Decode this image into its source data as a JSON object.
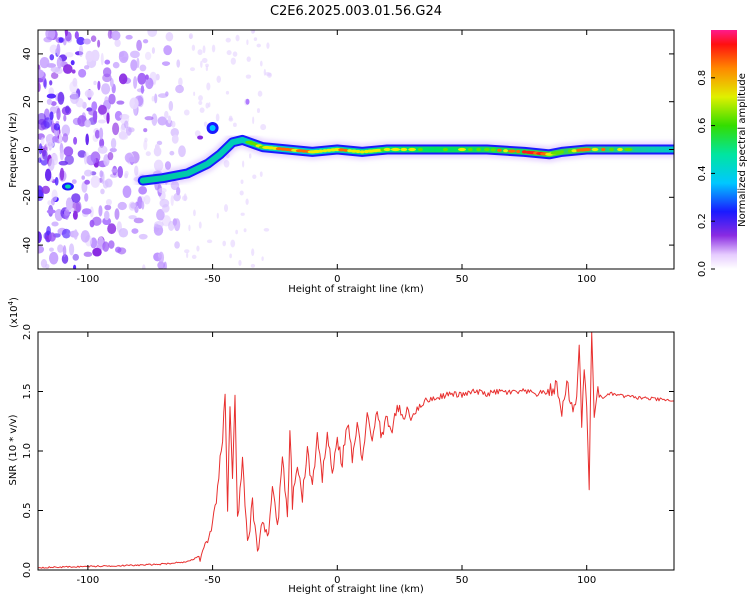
{
  "chart_data": [
    {
      "type": "heatmap",
      "title": "C2E6.2025.003.01.56.G24",
      "xlabel": "Height of straight line (km)",
      "ylabel": "Frequency (Hz)",
      "xlim": [
        -120,
        135
      ],
      "ylim": [
        -50,
        50
      ],
      "x_ticks": [
        "-100",
        "-50",
        "0",
        "50",
        "100"
      ],
      "x_tick_values": [
        -100,
        -50,
        0,
        50,
        100
      ],
      "y_ticks": [
        "-40",
        "-20",
        "0",
        "20",
        "40"
      ],
      "y_tick_values": [
        -40,
        -20,
        0,
        20,
        40
      ],
      "colorbar": {
        "label": "Normalized spectral amplitude",
        "range": [
          0,
          1
        ],
        "ticks": [
          "0.0",
          "0.2",
          "0.4",
          "0.6",
          "0.8"
        ],
        "tick_values": [
          0.0,
          0.2,
          0.4,
          0.6,
          0.8
        ]
      },
      "ridge": {
        "x": [
          -78,
          -70,
          -60,
          -52,
          -47,
          -42,
          -38,
          -30,
          -20,
          -10,
          0,
          10,
          20,
          40,
          60,
          75,
          85,
          90,
          100,
          120,
          135
        ],
        "y": [
          -13,
          -12,
          -10,
          -6,
          -2,
          3,
          4,
          1,
          0,
          -1,
          0,
          -1,
          0,
          0,
          0,
          -1,
          -2,
          -1,
          0,
          0,
          0
        ],
        "amplitude": [
          0.45,
          0.5,
          0.45,
          0.5,
          0.45,
          0.5,
          0.55,
          0.7,
          0.9,
          0.75,
          0.85,
          0.7,
          0.75,
          0.65,
          0.7,
          0.95,
          0.8,
          0.6,
          0.85,
          0.6,
          0.5
        ]
      }
    },
    {
      "type": "line",
      "xlabel": "Height of straight line (km)",
      "ylabel": "SNR (10 * v/v)",
      "y_multiplier": "(x10",
      "y_multiplier_exp": "4",
      "y_multiplier_close": ")",
      "xlim": [
        -120,
        135
      ],
      "ylim": [
        0,
        2.0
      ],
      "x_ticks": [
        "-100",
        "-50",
        "0",
        "50",
        "100"
      ],
      "x_tick_values": [
        -100,
        -50,
        0,
        50,
        100
      ],
      "y_ticks": [
        "0.0",
        "0.5",
        "1.0",
        "1.5",
        "2.0"
      ],
      "y_tick_values": [
        0.0,
        0.5,
        1.0,
        1.5,
        2.0
      ],
      "color": "#e8302f",
      "series": [
        {
          "name": "SNR",
          "x": [
            -120,
            -100,
            -80,
            -70,
            -60,
            -55,
            -52,
            -50,
            -48,
            -46,
            -45,
            -44,
            -43,
            -42,
            -41,
            -40,
            -38,
            -36,
            -34,
            -32,
            -30,
            -28,
            -26,
            -24,
            -22,
            -20,
            -19,
            -18,
            -16,
            -14,
            -12,
            -10,
            -8,
            -6,
            -4,
            -2,
            0,
            2,
            4,
            6,
            8,
            10,
            12,
            14,
            16,
            18,
            20,
            22,
            24,
            26,
            28,
            30,
            35,
            40,
            45,
            50,
            55,
            60,
            65,
            70,
            75,
            80,
            85,
            88,
            90,
            92,
            94,
            96,
            97,
            98,
            99,
            100,
            101,
            102,
            103,
            104,
            106,
            110,
            115,
            120,
            125,
            130,
            135
          ],
          "values": [
            0.02,
            0.03,
            0.04,
            0.05,
            0.07,
            0.12,
            0.2,
            0.35,
            0.7,
            1.1,
            1.46,
            0.5,
            1.42,
            0.8,
            1.47,
            0.4,
            0.9,
            0.2,
            0.55,
            0.15,
            0.45,
            0.25,
            0.7,
            0.35,
            0.95,
            0.4,
            1.2,
            0.55,
            0.9,
            0.6,
            1.0,
            0.7,
            1.1,
            0.75,
            1.2,
            0.8,
            1.1,
            0.9,
            1.25,
            0.95,
            1.2,
            0.95,
            1.3,
            1.05,
            1.35,
            1.1,
            1.3,
            1.15,
            1.4,
            1.25,
            1.35,
            1.3,
            1.42,
            1.45,
            1.48,
            1.47,
            1.5,
            1.48,
            1.5,
            1.49,
            1.5,
            1.48,
            1.5,
            1.55,
            1.3,
            1.6,
            1.35,
            1.45,
            1.9,
            1.25,
            1.65,
            1.4,
            0.7,
            2.0,
            1.3,
            1.5,
            1.45,
            1.48,
            1.46,
            1.45,
            1.44,
            1.43,
            1.42
          ]
        }
      ]
    }
  ]
}
